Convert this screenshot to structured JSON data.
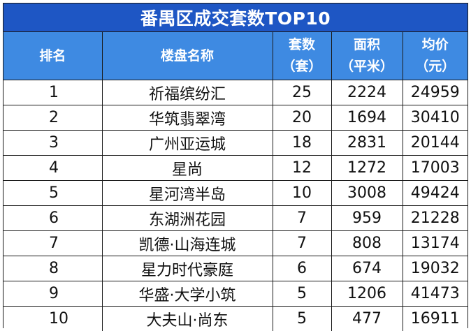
{
  "title": "番禺区成交套数TOP10",
  "headers": {
    "rank": "排名",
    "name": "楼盘名称",
    "count_line1": "套数",
    "count_line2": "（套）",
    "area_line1": "面积",
    "area_line2": "（平米）",
    "price_line1": "均价",
    "price_line2": "（元）"
  },
  "rows": [
    {
      "rank": "1",
      "name": "祈福缤纷汇",
      "count": "25",
      "area": "2224",
      "price": "24959"
    },
    {
      "rank": "2",
      "name": "华筑翡翠湾",
      "count": "20",
      "area": "1694",
      "price": "30410"
    },
    {
      "rank": "3",
      "name": "广州亚运城",
      "count": "18",
      "area": "2831",
      "price": "20144"
    },
    {
      "rank": "4",
      "name": "星尚",
      "count": "12",
      "area": "1272",
      "price": "17003"
    },
    {
      "rank": "5",
      "name": "星河湾半岛",
      "count": "10",
      "area": "3008",
      "price": "49424"
    },
    {
      "rank": "6",
      "name": "东湖洲花园",
      "count": "7",
      "area": "959",
      "price": "21228"
    },
    {
      "rank": "7",
      "name": "凯德·山海连城",
      "count": "7",
      "area": "808",
      "price": "13174"
    },
    {
      "rank": "8",
      "name": "星力时代豪庭",
      "count": "6",
      "area": "674",
      "price": "19032"
    },
    {
      "rank": "9",
      "name": "华盛·大学小筑",
      "count": "5",
      "area": "1206",
      "price": "41473"
    },
    {
      "rank": "10",
      "name": "大夫山·尚东",
      "count": "5",
      "area": "477",
      "price": "16911"
    }
  ],
  "colors": {
    "title_bg": "#1e56c4",
    "header_bg": "#3e8ae2",
    "border": "#1a1a1a"
  }
}
